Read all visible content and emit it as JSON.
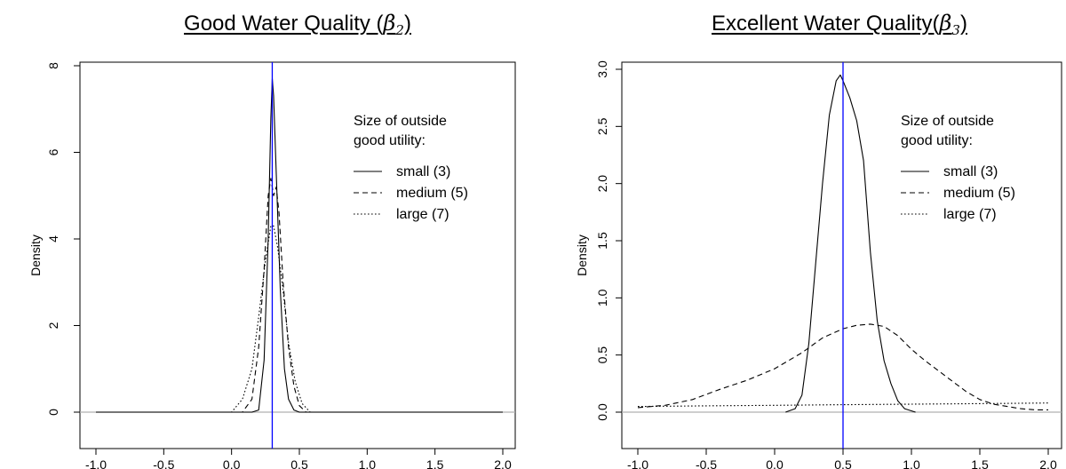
{
  "chart_data": [
    {
      "type": "line",
      "title": {
        "text": "Good Water Quality ",
        "symbol": "β",
        "subscript": "2",
        "close": ")",
        "open": "("
      },
      "ylabel": "Density",
      "xlim": [
        -1.0,
        2.0
      ],
      "ylim": [
        0,
        8
      ],
      "xticks": [
        "-1.0",
        "-0.5",
        "0.0",
        "0.5",
        "1.0",
        "1.5",
        "2.0"
      ],
      "yticks": [
        "0",
        "2",
        "4",
        "6",
        "8"
      ],
      "vline": 0.3,
      "vline_color": "#0000ff",
      "legend": {
        "title_line1": "Size of outside",
        "title_line2": "good utility:",
        "entries": [
          "small (3)",
          "medium (5)",
          "large (7)"
        ]
      },
      "series": [
        {
          "name": "small (3)",
          "style": "solid",
          "x": [
            -1.0,
            0.15,
            0.2,
            0.24,
            0.27,
            0.29,
            0.3,
            0.31,
            0.33,
            0.36,
            0.39,
            0.42,
            0.46,
            0.5,
            2.0
          ],
          "y": [
            0,
            0,
            0.05,
            1.2,
            4.0,
            6.8,
            7.7,
            7.3,
            5.5,
            2.8,
            1.0,
            0.3,
            0.05,
            0,
            0
          ]
        },
        {
          "name": "medium (5)",
          "style": "dashed",
          "x": [
            -1.0,
            0.08,
            0.15,
            0.2,
            0.24,
            0.27,
            0.29,
            0.31,
            0.33,
            0.35,
            0.38,
            0.42,
            0.46,
            0.5,
            0.55,
            2.0
          ],
          "y": [
            0,
            0,
            0.3,
            1.5,
            3.3,
            5.0,
            5.4,
            5.0,
            5.2,
            4.6,
            3.0,
            1.5,
            0.6,
            0.15,
            0,
            0
          ]
        },
        {
          "name": "large (7)",
          "style": "dotted",
          "x": [
            -1.0,
            0.0,
            0.08,
            0.15,
            0.2,
            0.25,
            0.29,
            0.31,
            0.34,
            0.38,
            0.42,
            0.47,
            0.52,
            0.58,
            2.0
          ],
          "y": [
            0,
            0,
            0.3,
            1.0,
            2.2,
            3.5,
            4.3,
            4.3,
            3.8,
            2.8,
            1.6,
            0.7,
            0.2,
            0,
            0
          ]
        }
      ]
    },
    {
      "type": "line",
      "title": {
        "text": "Excellent Water Quality",
        "symbol": "β",
        "subscript": "3",
        "close": ")",
        "open": "("
      },
      "ylabel": "Density",
      "xlim": [
        -1.0,
        2.0
      ],
      "ylim": [
        0,
        3.0
      ],
      "xticks": [
        "-1.0",
        "-0.5",
        "0.0",
        "0.5",
        "1.0",
        "1.5",
        "2.0"
      ],
      "yticks": [
        "0.0",
        "0.5",
        "1.0",
        "1.5",
        "2.0",
        "2.5",
        "3.0"
      ],
      "vline": 0.5,
      "vline_color": "#0000ff",
      "legend": {
        "title_line1": "Size of outside",
        "title_line2": "good utility:",
        "entries": [
          "small (3)",
          "medium (5)",
          "large (7)"
        ]
      },
      "series": [
        {
          "name": "small (3)",
          "style": "solid",
          "x": [
            0.08,
            0.15,
            0.2,
            0.25,
            0.3,
            0.35,
            0.4,
            0.45,
            0.48,
            0.5,
            0.55,
            0.6,
            0.65,
            0.7,
            0.75,
            0.8,
            0.85,
            0.9,
            0.95,
            1.03
          ],
          "y": [
            0,
            0.03,
            0.15,
            0.6,
            1.3,
            2.0,
            2.6,
            2.9,
            2.95,
            2.9,
            2.75,
            2.55,
            2.2,
            1.4,
            0.8,
            0.45,
            0.25,
            0.1,
            0.03,
            0
          ]
        },
        {
          "name": "medium (5)",
          "style": "dashed",
          "x": [
            -1.0,
            -0.8,
            -0.6,
            -0.4,
            -0.2,
            0.0,
            0.2,
            0.35,
            0.5,
            0.6,
            0.7,
            0.8,
            0.9,
            1.0,
            1.1,
            1.2,
            1.3,
            1.4,
            1.5,
            1.6,
            1.7,
            1.8,
            1.9,
            2.0
          ],
          "y": [
            0.04,
            0.06,
            0.11,
            0.2,
            0.28,
            0.38,
            0.52,
            0.65,
            0.73,
            0.76,
            0.77,
            0.75,
            0.67,
            0.55,
            0.45,
            0.36,
            0.27,
            0.18,
            0.11,
            0.07,
            0.05,
            0.03,
            0.02,
            0.02
          ]
        },
        {
          "name": "large (7)",
          "style": "dotted",
          "x": [
            -1.0,
            -0.5,
            0.0,
            0.5,
            1.0,
            1.5,
            2.0
          ],
          "y": [
            0.05,
            0.055,
            0.06,
            0.065,
            0.07,
            0.075,
            0.08
          ]
        }
      ]
    }
  ]
}
